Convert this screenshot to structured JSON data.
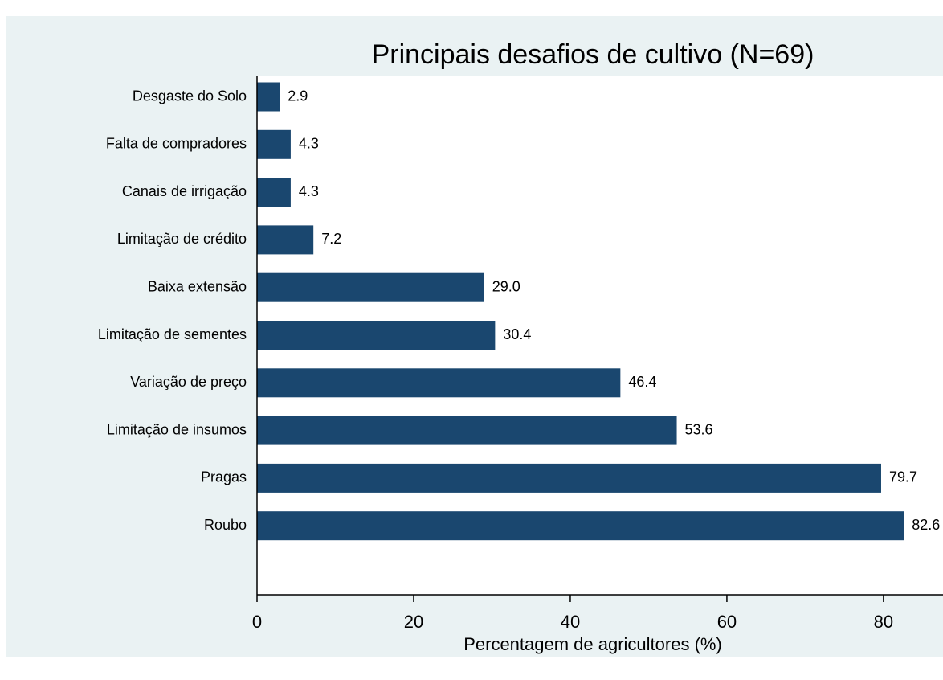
{
  "chart_data": {
    "type": "barh",
    "title": "Principais desafios de cultivo (N=69)",
    "xlabel": "Percentagem de agricultores (%)",
    "categories": [
      "Desgaste do Solo",
      "Falta de compradores",
      "Canais de irrigação",
      "Limitação de crédito",
      "Baixa extensão",
      "Limitação de sementes",
      "Variação de preço",
      "Limitação de insumos",
      "Pragas",
      "Roubo"
    ],
    "values": [
      2.9,
      4.3,
      4.3,
      7.2,
      29.0,
      30.4,
      46.4,
      53.6,
      79.7,
      82.6
    ],
    "value_labels": [
      "2.9",
      "4.3",
      "4.3",
      "7.2",
      "29.0",
      "30.4",
      "46.4",
      "53.6",
      "79.7",
      "82.6"
    ],
    "color": "#1a476f",
    "xlim": [
      0,
      87.6
    ],
    "xticks": [
      0,
      20,
      40,
      60,
      80
    ],
    "grid": false
  }
}
